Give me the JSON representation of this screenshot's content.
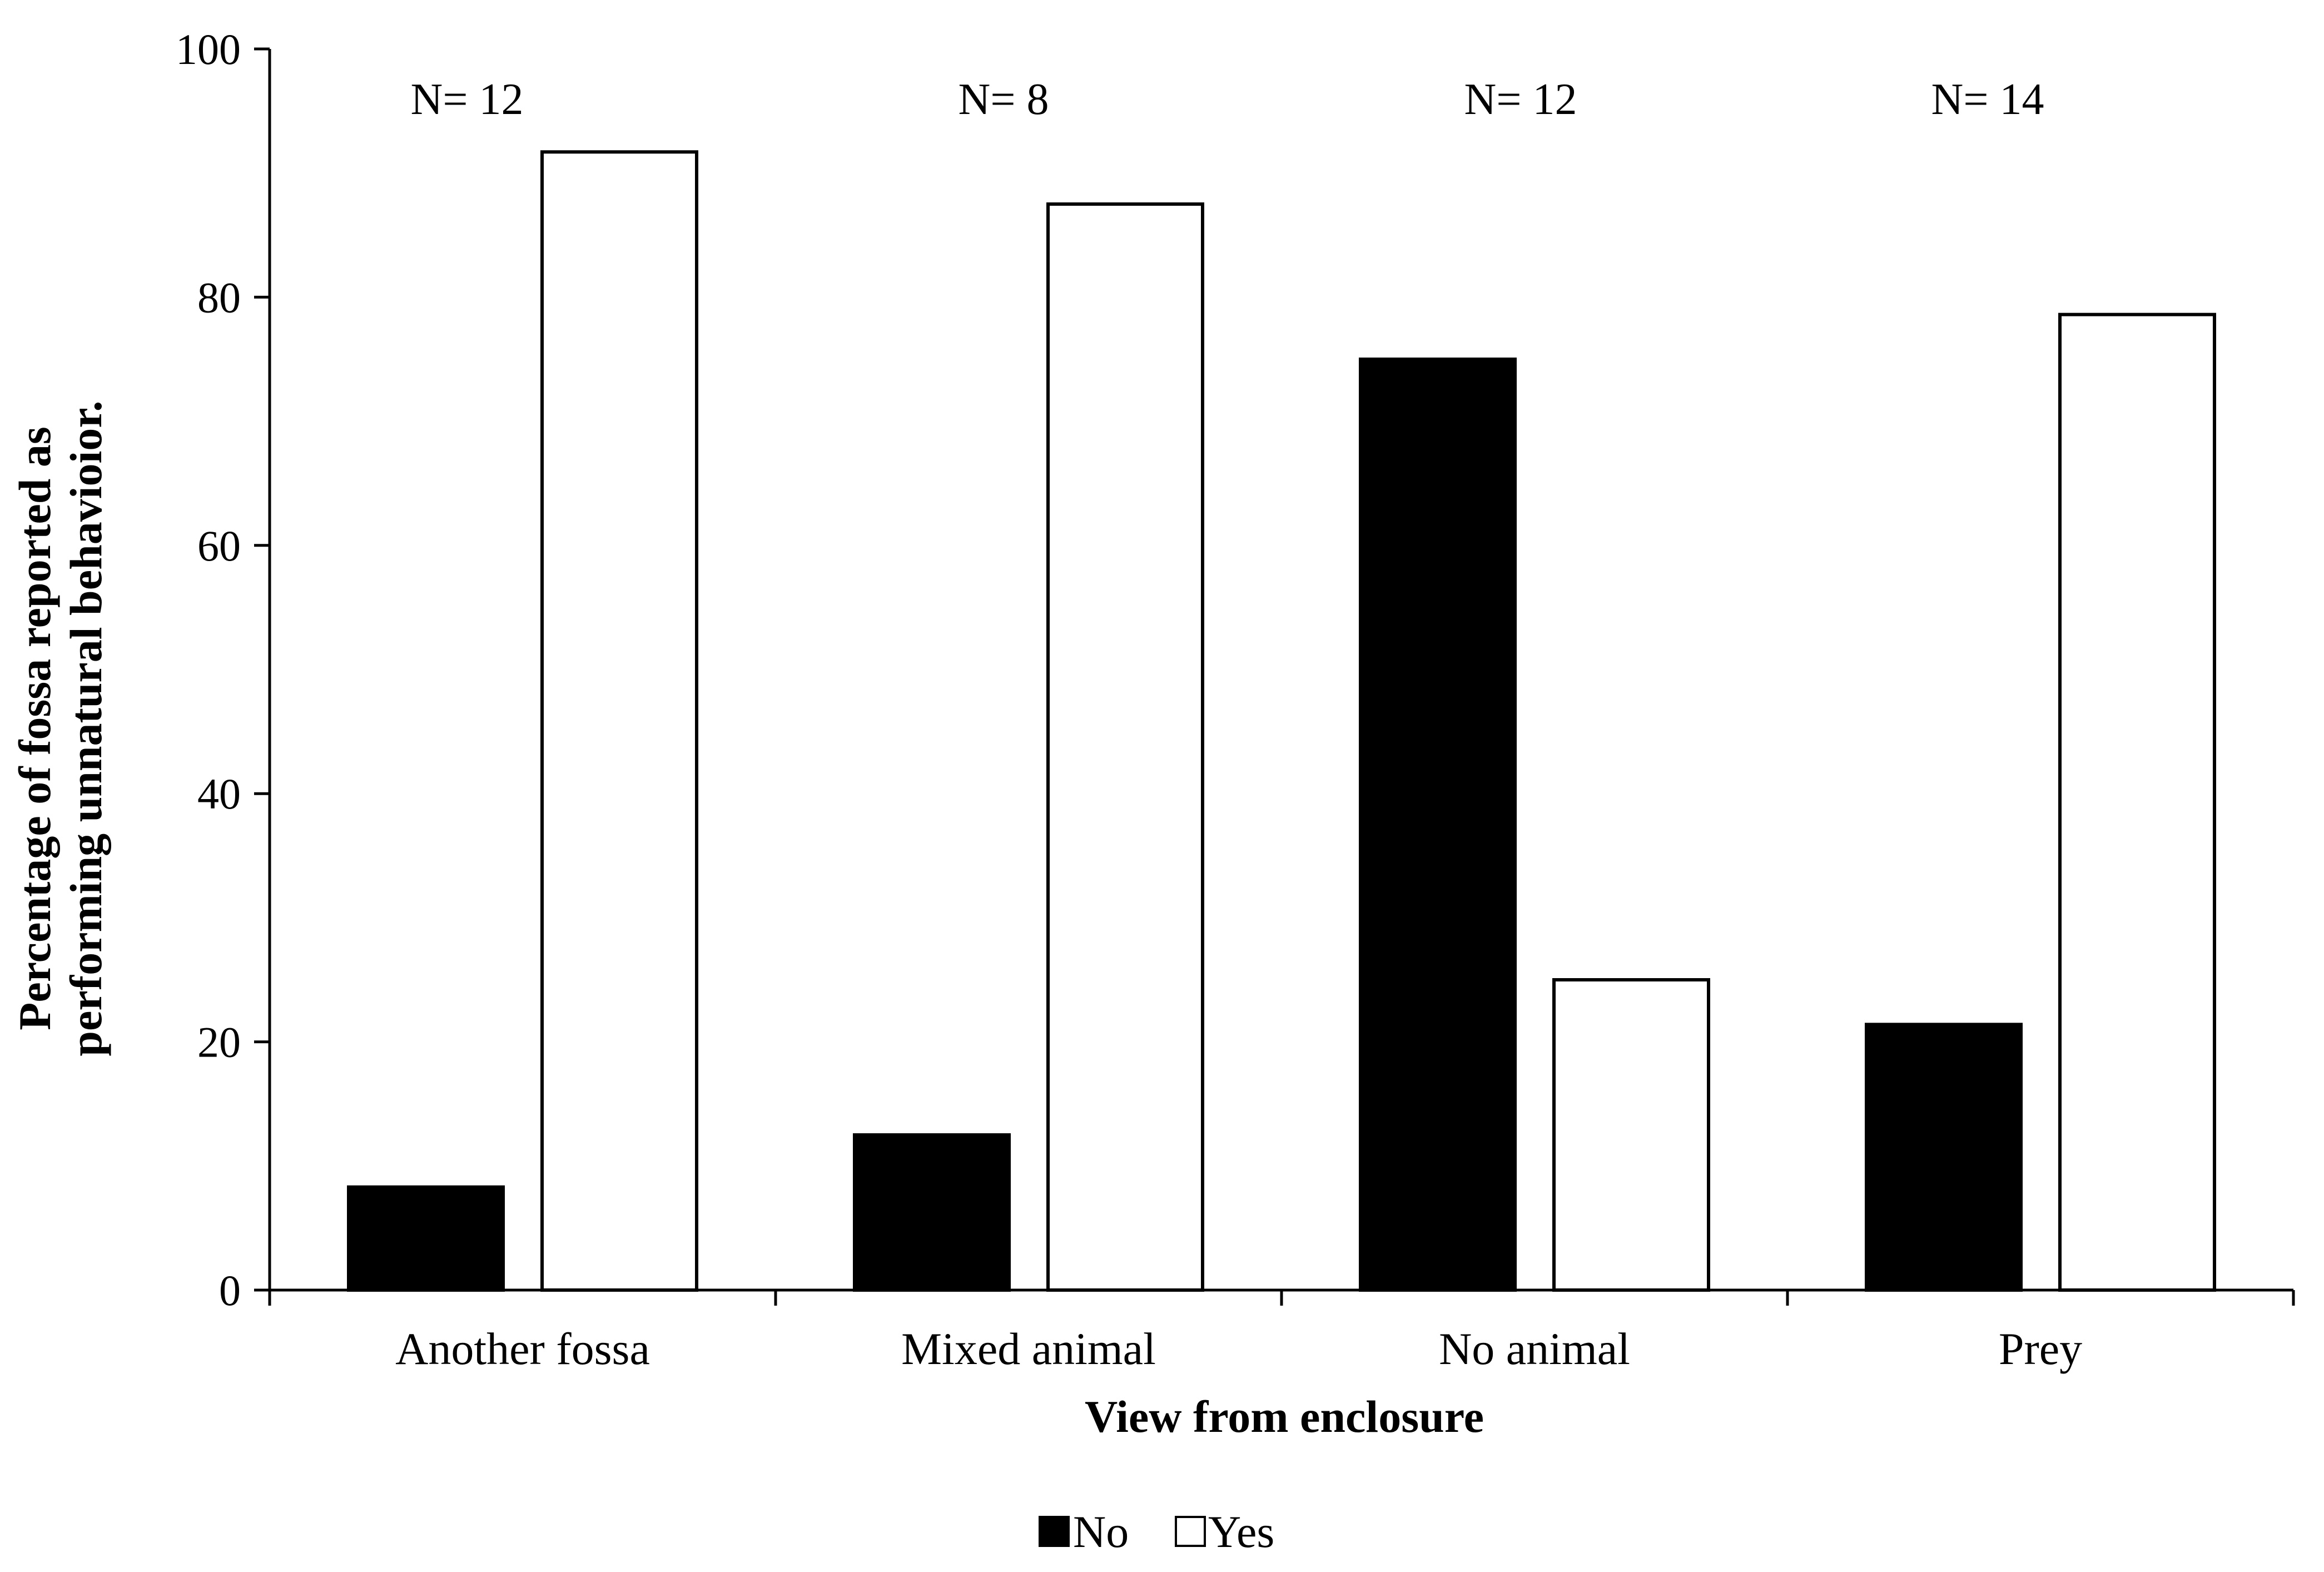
{
  "chart_data": {
    "type": "bar",
    "categories": [
      "Another fossa",
      "Mixed animal",
      "No animal",
      "Prey"
    ],
    "series": [
      {
        "name": "No",
        "values": [
          8.3,
          12.5,
          75.0,
          21.4
        ],
        "color": "#000000"
      },
      {
        "name": "Yes",
        "values": [
          91.7,
          87.5,
          25.0,
          78.6
        ],
        "color": "#ffffff"
      }
    ],
    "annotations": [
      "N= 12",
      "N= 8",
      "N= 12",
      "N= 14"
    ],
    "xlabel": "View from enclosure",
    "ylabel_lines": [
      "Percentage of fossa reported as",
      "performing unnatural behavioior."
    ],
    "ylim": [
      0,
      100
    ],
    "yticks": [
      0,
      20,
      40,
      60,
      80,
      100
    ],
    "grid": false,
    "legend": "bottom"
  }
}
